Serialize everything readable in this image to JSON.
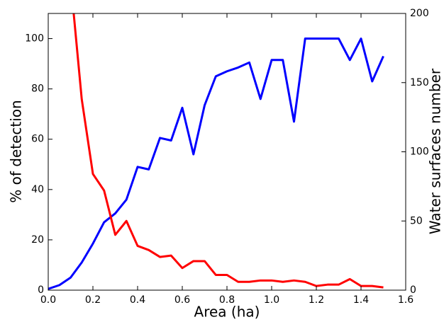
{
  "chart_data": {
    "type": "line",
    "xlabel": "Area (ha)",
    "ylabel": "% of detection",
    "y2label": "Water surfaces number",
    "x": [
      0,
      0.05,
      0.1,
      0.15,
      0.2,
      0.25,
      0.3,
      0.35,
      0.4,
      0.45,
      0.5,
      0.55,
      0.6,
      0.65,
      0.7,
      0.75,
      0.8,
      0.85,
      0.9,
      0.95,
      1.0,
      1.05,
      1.1,
      1.15,
      1.2,
      1.25,
      1.3,
      1.35,
      1.4,
      1.45,
      1.5
    ],
    "series": [
      {
        "color": "#0000ff",
        "values": [
          0.5,
          2,
          5,
          11,
          18.5,
          27,
          30.5,
          36,
          49,
          48,
          60.5,
          59.5,
          72.5,
          54,
          73.5,
          85,
          87,
          88.5,
          90.5,
          76,
          91.5,
          91.5,
          67,
          100,
          100,
          100,
          100,
          91.5,
          100,
          83,
          93
        ]
      },
      {
        "color": "#ff0000",
        "axis": "y2",
        "values": [
          null,
          null,
          224,
          138,
          84,
          72,
          40,
          50,
          32,
          29,
          24,
          25,
          16,
          21,
          21,
          11,
          11,
          6,
          6,
          7,
          7,
          6,
          7,
          6,
          3,
          4,
          4,
          8,
          3,
          3,
          2
        ]
      }
    ],
    "xlim": [
      0,
      1.6
    ],
    "xticks": [
      {
        "value": 0,
        "label": "0.0"
      },
      0.2,
      0.4,
      0.6,
      0.8,
      {
        "value": 1,
        "label": "1.0"
      },
      1.2,
      1.4,
      1.6
    ],
    "ylim": [
      0,
      110
    ],
    "yticks": [
      0,
      20,
      40,
      60,
      80,
      100
    ],
    "y2lim": [
      0,
      200
    ],
    "y2ticks": [
      0,
      50,
      100,
      150,
      200
    ]
  }
}
